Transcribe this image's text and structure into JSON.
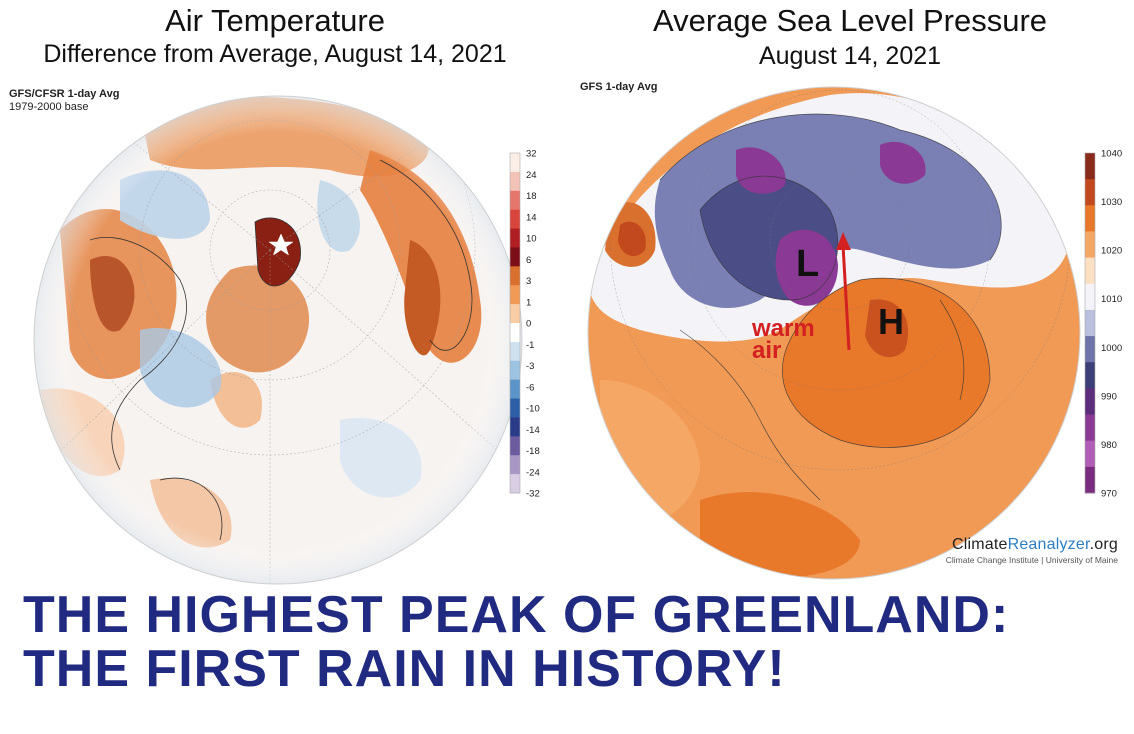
{
  "left_panel": {
    "title": "Air Temperature",
    "subtitle": "Difference from Average, August 14, 2021",
    "source": "GFS/CFSR 1-day Avg",
    "base": "1979-2000 base",
    "colorbar_ticks": [
      "32",
      "24",
      "18",
      "14",
      "10",
      "6",
      "3",
      "1",
      "0",
      "-1",
      "-3",
      "-6",
      "-10",
      "-14",
      "-18",
      "-24",
      "-32"
    ],
    "colorbar_colors": [
      "#fbeee6",
      "#f3c3b8",
      "#e5766c",
      "#d9443d",
      "#b01d22",
      "#7c0f18",
      "#d9702e",
      "#f19a55",
      "#f8cca4",
      "#ffffff",
      "#cfe1ef",
      "#9cc3e2",
      "#5c93c9",
      "#2d5fa8",
      "#2a3b8a",
      "#6c5b9e",
      "#a896c4",
      "#d8cde3"
    ],
    "marker_icon": "star-icon"
  },
  "right_panel": {
    "title": "Average Sea Level Pressure",
    "subtitle": "August 14, 2021",
    "source": "GFS 1-day Avg",
    "colorbar_ticks": [
      "1040",
      "1030",
      "1020",
      "1010",
      "1000",
      "990",
      "980",
      "970"
    ],
    "colorbar_colors": [
      "#8a2a1b",
      "#c2491d",
      "#e8782a",
      "#f5a866",
      "#fbe0c4",
      "#f4f4f8",
      "#b9bfdc",
      "#6e74a9",
      "#3d3f78",
      "#5c2d7a",
      "#8a3a94",
      "#b05eb5",
      "#7a2c80"
    ],
    "low_label": "L",
    "high_label": "H",
    "warm_air_label_1": "warm",
    "warm_air_label_2": "air"
  },
  "credit": {
    "name_part1": "Climate",
    "name_part2": "Reanalyzer",
    "name_part3": ".org",
    "affiliation": "Climate Change Institute | University of Maine"
  },
  "headline": {
    "line1": "THE HIGHEST PEAK OF GREENLAND:",
    "line2": "THE FIRST RAIN IN HISTORY!"
  }
}
